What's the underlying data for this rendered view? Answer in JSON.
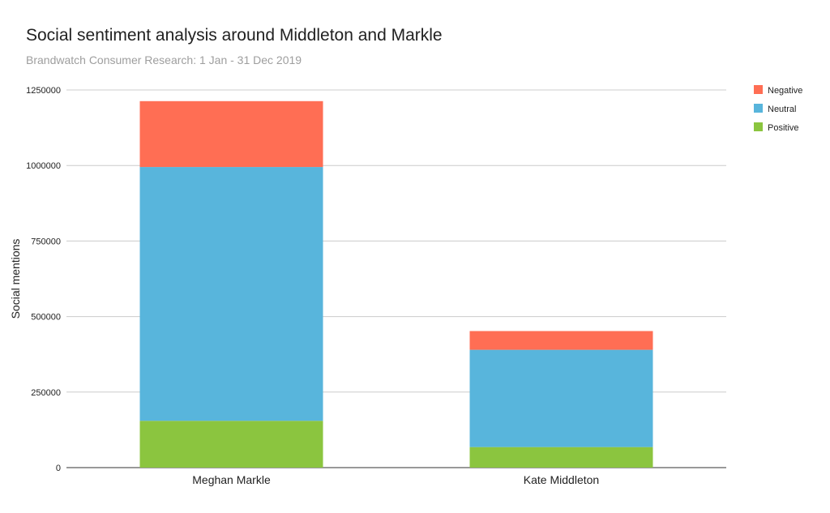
{
  "chart_data": {
    "type": "bar",
    "stacked": true,
    "title": "Social sentiment analysis around Middleton and Markle",
    "subtitle": "Brandwatch Consumer Research: 1 Jan - 31 Dec 2019",
    "xlabel": "",
    "ylabel": "Social mentions",
    "ylim": [
      0,
      1250000
    ],
    "yticks": [
      "0",
      "250000",
      "500000",
      "750000",
      "1000000",
      "1250000"
    ],
    "categories": [
      "Meghan Markle",
      "Kate Middleton"
    ],
    "series": [
      {
        "name": "Positive",
        "color": "#8bc53f",
        "values": [
          155000,
          68000
        ]
      },
      {
        "name": "Neutral",
        "color": "#58b5dc",
        "values": [
          840000,
          322000
        ]
      },
      {
        "name": "Negative",
        "color": "#ff6e54",
        "values": [
          218000,
          62000
        ]
      }
    ],
    "legend": {
      "position": "right",
      "order": [
        "Negative",
        "Neutral",
        "Positive"
      ]
    },
    "grid": true
  }
}
